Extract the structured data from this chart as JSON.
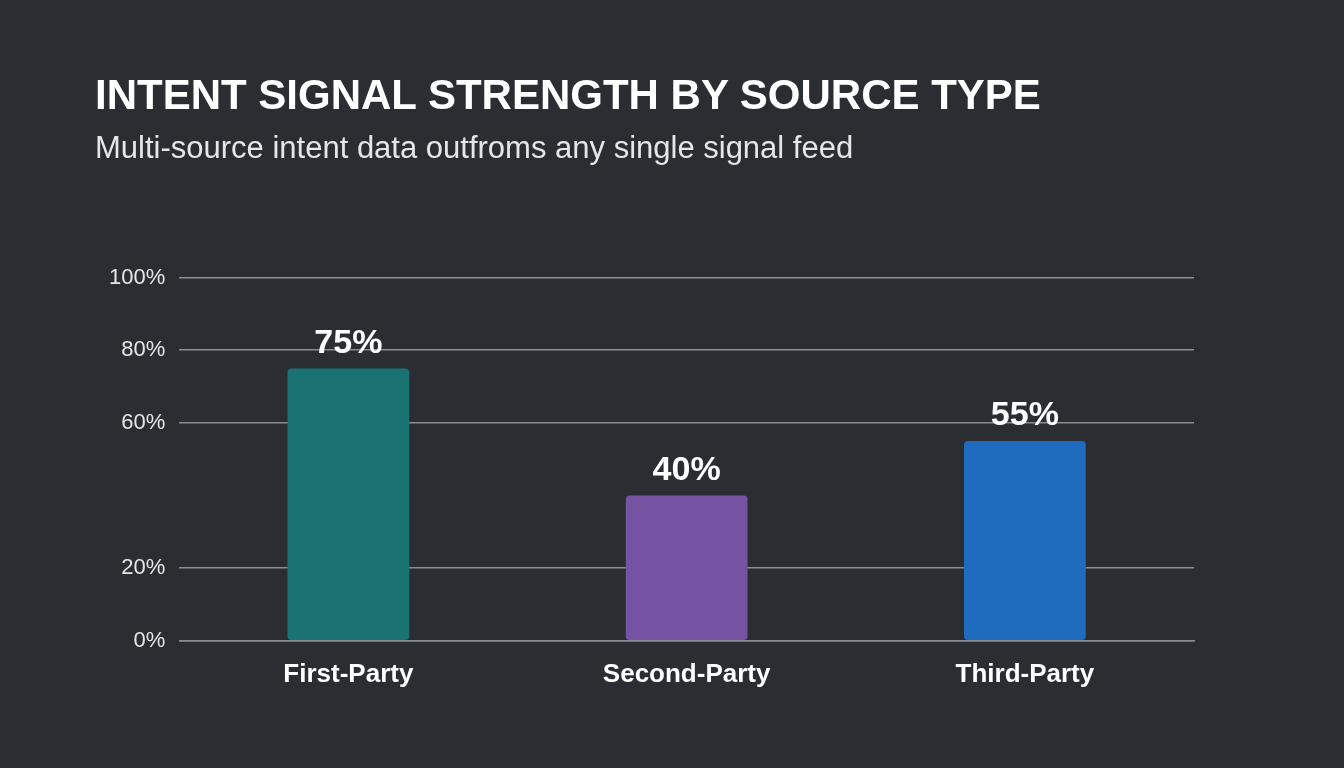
{
  "chart_data": {
    "type": "bar",
    "title": "INTENT SIGNAL STRENGTH BY SOURCE TYPE",
    "subtitle": "Multi-source intent data outfroms any single signal feed",
    "categories": [
      "First-Party",
      "Second-Party",
      "Third-Party"
    ],
    "values": [
      75,
      40,
      55
    ],
    "colors": [
      "#1a7272",
      "#7552a2",
      "#1f6cbf"
    ],
    "ylim": [
      0,
      100
    ],
    "yticks": [
      {
        "value": 0,
        "label": "0%"
      },
      {
        "value": 20,
        "label": "20%"
      },
      {
        "value": 60,
        "label": "60%"
      },
      {
        "value": 80,
        "label": "80%"
      },
      {
        "value": 100,
        "label": "100%"
      }
    ],
    "value_labels": [
      "75%",
      "40%",
      "55%"
    ],
    "grid": "y",
    "legend": false
  }
}
